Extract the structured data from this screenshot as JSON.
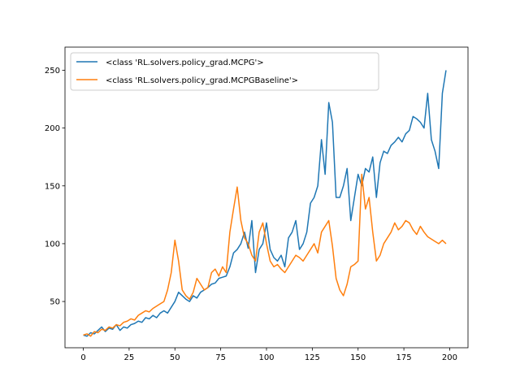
{
  "chart_data": {
    "type": "line",
    "title": "",
    "xlabel": "",
    "ylabel": "",
    "xlim": [
      -10,
      210
    ],
    "ylim": [
      10,
      270
    ],
    "xticks": [
      0,
      25,
      50,
      75,
      100,
      125,
      150,
      175,
      200
    ],
    "yticks": [
      50,
      100,
      150,
      200,
      250
    ],
    "grid": false,
    "legend_position": "top-left",
    "series": [
      {
        "name": "<class 'RL.solvers.policy_grad.MCPG'>",
        "color": "#1f77b4",
        "x": [
          0,
          2,
          4,
          6,
          8,
          10,
          12,
          14,
          16,
          18,
          20,
          22,
          24,
          26,
          28,
          30,
          32,
          34,
          36,
          38,
          40,
          42,
          44,
          46,
          48,
          50,
          52,
          54,
          56,
          58,
          60,
          62,
          64,
          66,
          68,
          70,
          72,
          74,
          76,
          78,
          80,
          82,
          84,
          86,
          88,
          90,
          92,
          94,
          96,
          98,
          100,
          102,
          104,
          106,
          108,
          110,
          112,
          114,
          116,
          118,
          120,
          122,
          124,
          126,
          128,
          130,
          132,
          134,
          136,
          138,
          140,
          142,
          144,
          146,
          148,
          150,
          152,
          154,
          156,
          158,
          160,
          162,
          164,
          166,
          168,
          170,
          172,
          174,
          176,
          178,
          180,
          182,
          184,
          186,
          188,
          190,
          192,
          194,
          196,
          198
        ],
        "y": [
          21,
          20,
          23,
          22,
          25,
          28,
          24,
          27,
          26,
          30,
          25,
          28,
          27,
          30,
          31,
          33,
          32,
          36,
          35,
          38,
          36,
          40,
          42,
          40,
          45,
          50,
          58,
          55,
          52,
          50,
          55,
          53,
          58,
          60,
          62,
          65,
          66,
          70,
          71,
          72,
          80,
          92,
          95,
          100,
          110,
          96,
          120,
          75,
          95,
          100,
          118,
          95,
          88,
          85,
          90,
          80,
          105,
          110,
          120,
          95,
          100,
          110,
          135,
          140,
          150,
          190,
          160,
          222,
          205,
          140,
          140,
          150,
          165,
          120,
          140,
          160,
          150,
          165,
          162,
          175,
          140,
          170,
          180,
          178,
          185,
          188,
          192,
          188,
          195,
          198,
          210,
          208,
          205,
          200,
          230,
          190,
          180,
          165,
          230,
          250
        ],
        "values": [
          21,
          20,
          23,
          22,
          25,
          28,
          24,
          27,
          26,
          30,
          25,
          28,
          27,
          30,
          31,
          33,
          32,
          36,
          35,
          38,
          36,
          40,
          42,
          40,
          45,
          50,
          58,
          55,
          52,
          50,
          55,
          53,
          58,
          60,
          62,
          65,
          66,
          70,
          71,
          72,
          80,
          92,
          95,
          100,
          110,
          96,
          120,
          75,
          95,
          100,
          118,
          95,
          88,
          85,
          90,
          80,
          105,
          110,
          120,
          95,
          100,
          110,
          135,
          140,
          150,
          190,
          160,
          222,
          205,
          140,
          140,
          150,
          165,
          120,
          140,
          160,
          150,
          165,
          162,
          175,
          140,
          170,
          180,
          178,
          185,
          188,
          192,
          188,
          195,
          198,
          210,
          208,
          205,
          200,
          230,
          190,
          180,
          165,
          230,
          250
        ]
      },
      {
        "name": "<class 'RL.solvers.policy_grad.MCPGBaseline'>",
        "color": "#ff7f0e",
        "x": [
          0,
          2,
          4,
          6,
          8,
          10,
          12,
          14,
          16,
          18,
          20,
          22,
          24,
          26,
          28,
          30,
          32,
          34,
          36,
          38,
          40,
          42,
          44,
          46,
          48,
          50,
          52,
          54,
          56,
          58,
          60,
          62,
          64,
          66,
          68,
          70,
          72,
          74,
          76,
          78,
          80,
          82,
          84,
          86,
          88,
          90,
          92,
          94,
          96,
          98,
          100,
          102,
          104,
          106,
          108,
          110,
          112,
          114,
          116,
          118,
          120,
          122,
          124,
          126,
          128,
          130,
          132,
          134,
          136,
          138,
          140,
          142,
          144,
          146,
          148,
          150,
          152,
          154,
          156,
          158,
          160,
          162,
          164,
          166,
          168,
          170,
          172,
          174,
          176,
          178,
          180,
          182,
          184,
          186,
          188,
          190,
          192,
          194,
          196,
          198
        ],
        "y": [
          21,
          22,
          20,
          24,
          23,
          26,
          25,
          28,
          27,
          30,
          29,
          32,
          33,
          35,
          34,
          38,
          40,
          42,
          41,
          44,
          46,
          48,
          50,
          60,
          75,
          103,
          85,
          60,
          55,
          52,
          58,
          70,
          65,
          60,
          62,
          75,
          78,
          72,
          80,
          75,
          110,
          130,
          149,
          120,
          105,
          100,
          90,
          85,
          110,
          118,
          100,
          85,
          80,
          82,
          78,
          75,
          80,
          85,
          90,
          88,
          85,
          90,
          95,
          100,
          92,
          110,
          115,
          120,
          98,
          70,
          60,
          55,
          65,
          80,
          82,
          85,
          160,
          130,
          140,
          110,
          85,
          90,
          100,
          105,
          110,
          118,
          112,
          115,
          120,
          118,
          112,
          108,
          115,
          110,
          106,
          104,
          102,
          100,
          103,
          100
        ],
        "values": [
          21,
          22,
          20,
          24,
          23,
          26,
          25,
          28,
          27,
          30,
          29,
          32,
          33,
          35,
          34,
          38,
          40,
          42,
          41,
          44,
          46,
          48,
          50,
          60,
          75,
          103,
          85,
          60,
          55,
          52,
          58,
          70,
          65,
          60,
          62,
          75,
          78,
          72,
          80,
          75,
          110,
          130,
          149,
          120,
          105,
          100,
          90,
          85,
          110,
          118,
          100,
          85,
          80,
          82,
          78,
          75,
          80,
          85,
          90,
          88,
          85,
          90,
          95,
          100,
          92,
          110,
          115,
          120,
          98,
          70,
          60,
          55,
          65,
          80,
          82,
          85,
          160,
          130,
          140,
          110,
          85,
          90,
          100,
          105,
          110,
          118,
          112,
          115,
          120,
          118,
          112,
          108,
          115,
          110,
          106,
          104,
          102,
          100,
          103,
          100
        ]
      }
    ]
  }
}
